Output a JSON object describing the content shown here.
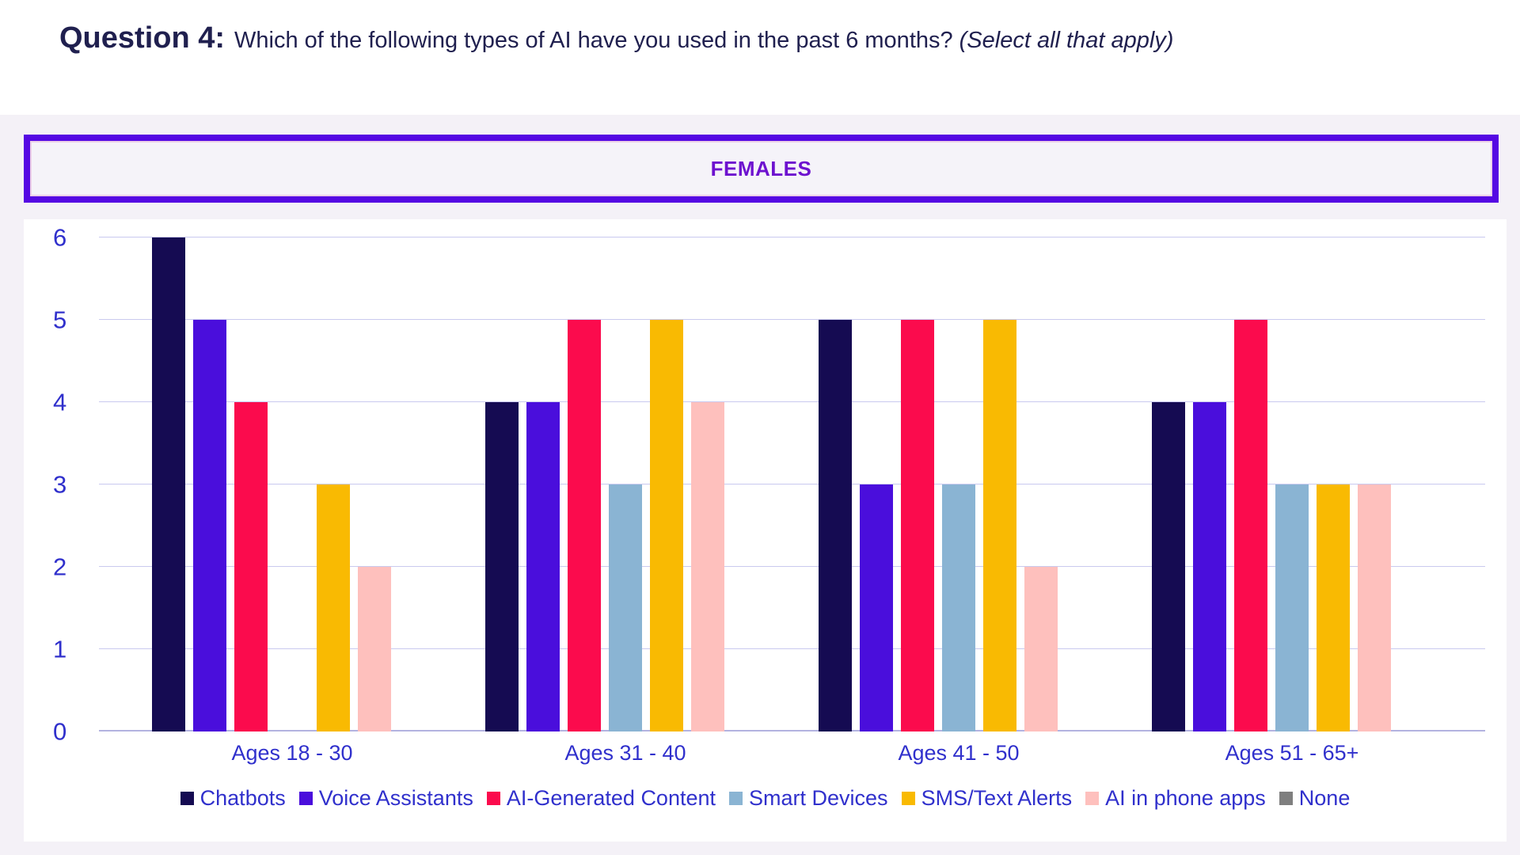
{
  "title": {
    "prefix": "Question 4:",
    "question": "Which of the following types of AI have you used in the past 6 months?",
    "note": "(Select all that apply)"
  },
  "banner": {
    "label": "FEMALES"
  },
  "colors": {
    "page_bg": "#f4f1f7",
    "panel_bg": "#ffffff",
    "title_text": "#20204f",
    "axis_text": "#3030cc",
    "grid_line": "#c9c9ef",
    "baseline": "#b3b3e0",
    "banner_border": "#5508e3",
    "banner_bg": "#f5f3f9",
    "banner_text": "#6d11cf"
  },
  "chart_data": {
    "type": "bar",
    "title": "FEMALES",
    "categories": [
      "Ages 18 - 30",
      "Ages 31 - 40",
      "Ages 41 - 50",
      "Ages 51 - 65+"
    ],
    "series": [
      {
        "name": "Chatbots",
        "color": "#150b52",
        "values": [
          6,
          4,
          5,
          4
        ]
      },
      {
        "name": "Voice Assistants",
        "color": "#4a0edc",
        "values": [
          5,
          4,
          3,
          4
        ]
      },
      {
        "name": "AI-Generated Content",
        "color": "#fb0b4d",
        "values": [
          4,
          5,
          5,
          5
        ]
      },
      {
        "name": "Smart Devices",
        "color": "#8ab4d3",
        "values": [
          0,
          3,
          3,
          3
        ]
      },
      {
        "name": "SMS/Text Alerts",
        "color": "#f9ba02",
        "values": [
          3,
          5,
          5,
          3
        ]
      },
      {
        "name": "AI in phone apps",
        "color": "#fec0bd",
        "values": [
          2,
          4,
          2,
          3
        ]
      },
      {
        "name": "None",
        "color": "#7f7f7f",
        "values": [
          0,
          0,
          0,
          0
        ]
      }
    ],
    "xlabel": "",
    "ylabel": "",
    "ylim": [
      0,
      6
    ],
    "yticks": [
      0,
      1,
      2,
      3,
      4,
      5,
      6
    ],
    "grid": true,
    "legend_position": "bottom"
  }
}
